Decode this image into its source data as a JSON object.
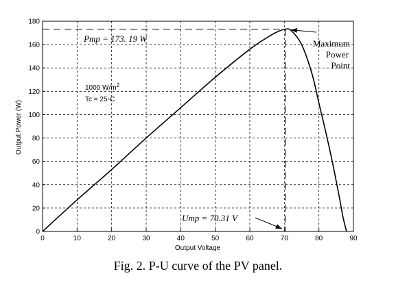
{
  "chart_data": {
    "type": "line",
    "xlabel": "Output Voltage",
    "ylabel": "Output Power (W)",
    "xlim": [
      0,
      90
    ],
    "ylim": [
      0,
      180
    ],
    "x_ticks": [
      0,
      10,
      20,
      30,
      40,
      50,
      60,
      70,
      80,
      90
    ],
    "y_ticks": [
      0,
      20,
      40,
      60,
      80,
      100,
      120,
      140,
      160,
      180
    ],
    "grid": true,
    "grid_style": "dashed",
    "series": [
      {
        "x": [
          0,
          10,
          20,
          30,
          40,
          50,
          60,
          65,
          68,
          70.31,
          72,
          75,
          78,
          80,
          82,
          84,
          86,
          87,
          88
        ],
        "y": [
          0,
          27,
          53,
          80,
          106,
          132,
          156,
          166,
          171,
          173.19,
          172,
          160,
          135,
          110,
          85,
          58,
          28,
          12,
          0
        ]
      }
    ],
    "annotations": {
      "pmp": "Pmp = 173. 19 W",
      "ump": "Ump = 70.31 V",
      "irradiance": "1000 W/m",
      "irradiance_sup": "2",
      "temperature": "Tc = 25◦C",
      "mpp_line1": "Maximum",
      "mpp_line2": "Power",
      "mpp_line3": "Point"
    },
    "mpp": {
      "x": 70.31,
      "y": 173.19
    }
  },
  "caption": "Fig. 2.  P-U curve of the PV panel."
}
